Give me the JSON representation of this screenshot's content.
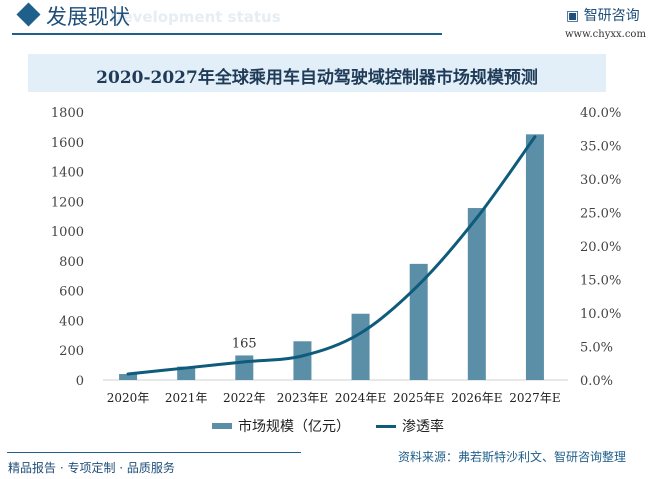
{
  "header": {
    "title": "发展现状",
    "subtitle": "Development status",
    "logo": "智研咨询",
    "url": "www.chyxx.com"
  },
  "footer": {
    "slogan": "精品报告 · 专项定制 · 品质服务",
    "source": "资料来源：弗若斯特沙利文、智研咨询整理"
  },
  "colors": {
    "bar": "#5b8fa8",
    "line": "#0e5b7c",
    "accent": "#1f5f8b"
  },
  "chart_data": {
    "type": "bar+line",
    "title": "2020-2027年全球乘用车自动驾驶域控制器市场规模预测",
    "categories": [
      "2020年",
      "2021年",
      "2022年",
      "2023年E",
      "2024年E",
      "2025年E",
      "2026年E",
      "2027年E"
    ],
    "series": [
      {
        "name": "市场规模（亿元）",
        "type": "bar",
        "axis": "left",
        "values": [
          40,
          90,
          165,
          260,
          445,
          780,
          1155,
          1650
        ]
      },
      {
        "name": "渗透率",
        "type": "line",
        "axis": "right",
        "values": [
          0.9,
          1.8,
          2.7,
          3.6,
          7.0,
          14.2,
          24.2,
          36.3
        ]
      }
    ],
    "data_labels": [
      {
        "category": "2022年",
        "text": "165"
      }
    ],
    "left_axis": {
      "ylim": [
        0,
        1800
      ],
      "ticks": [
        "0",
        "200",
        "400",
        "600",
        "800",
        "1000",
        "1200",
        "1400",
        "1600",
        "1800"
      ]
    },
    "right_axis": {
      "ylim": [
        0,
        40
      ],
      "ticks": [
        "0.0%",
        "5.0%",
        "10.0%",
        "15.0%",
        "20.0%",
        "25.0%",
        "30.0%",
        "35.0%",
        "40.0%"
      ]
    },
    "grid": false,
    "legend": "bottom"
  }
}
